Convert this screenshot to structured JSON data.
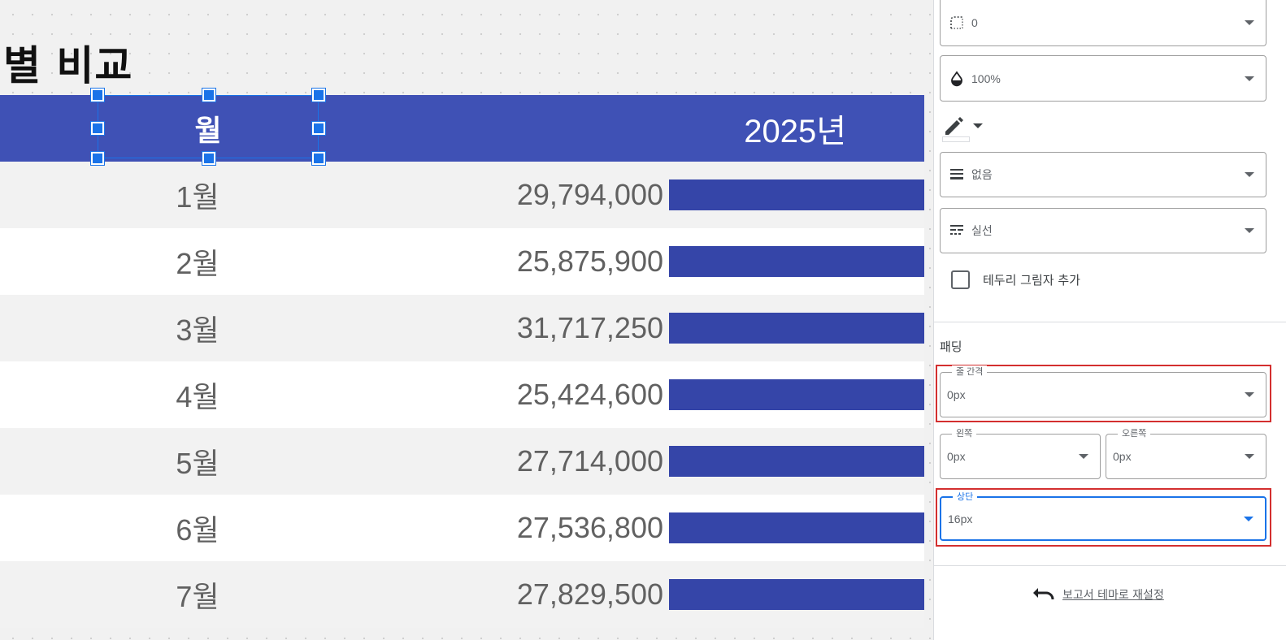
{
  "report": {
    "title": "별 비교",
    "header": {
      "month": "월",
      "year": "2025년"
    },
    "rows": [
      {
        "month": "1월",
        "value": "29,794,000"
      },
      {
        "month": "2월",
        "value": "25,875,900"
      },
      {
        "month": "3월",
        "value": "31,717,250"
      },
      {
        "month": "4월",
        "value": "25,424,600"
      },
      {
        "month": "5월",
        "value": "27,714,000"
      },
      {
        "month": "6월",
        "value": "27,536,800"
      },
      {
        "month": "7월",
        "value": "27,829,500"
      }
    ]
  },
  "panel": {
    "border_radius": {
      "value": "0",
      "icon": "corner-radius-icon"
    },
    "opacity": {
      "value": "100%",
      "icon": "opacity-drop-icon"
    },
    "border_color": {
      "icon": "pencil-color-icon"
    },
    "border_weight": {
      "value": "없음",
      "icon": "line-weight-icon"
    },
    "border_style": {
      "value": "실선",
      "icon": "line-style-icon"
    },
    "shadow_checkbox": {
      "label": "테두리 그림자 추가",
      "checked": false
    },
    "padding_section": "패딩",
    "line_spacing": {
      "label": "줄 간격",
      "value": "0px"
    },
    "left": {
      "label": "왼쪽",
      "value": "0px"
    },
    "right": {
      "label": "오른쪽",
      "value": "0px"
    },
    "top": {
      "label": "상단",
      "value": "16px"
    },
    "reset_label": "보고서 테마로 재설정"
  },
  "colors": {
    "header_bg": "#3f51b5",
    "bar": "#3545a8",
    "selection": "#1a73e8",
    "highlight": "#d32f2f"
  }
}
